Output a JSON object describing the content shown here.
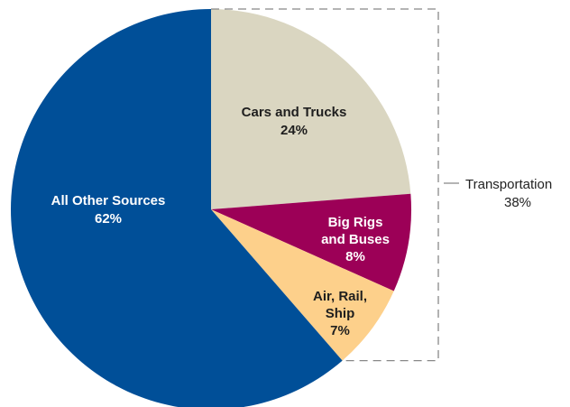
{
  "chart_data": {
    "type": "pie",
    "slices": [
      {
        "name": "Cars and Trucks",
        "label_lines": [
          "Cars and Trucks",
          "24%"
        ],
        "value": 24,
        "color": "#dad6c1",
        "text_color": "#1e1e1e"
      },
      {
        "name": "Big Rigs and Buses",
        "label_lines": [
          "Big Rigs",
          "and Buses",
          "8%"
        ],
        "value": 8,
        "color": "#9c0057",
        "text_color": "#ffffff"
      },
      {
        "name": "Air, Rail, Ship",
        "label_lines": [
          "Air, Rail,",
          "Ship",
          "7%"
        ],
        "value": 7,
        "color": "#fdd08b",
        "text_color": "#1e1e1e"
      },
      {
        "name": "All Other Sources",
        "label_lines": [
          "All Other Sources",
          "62%"
        ],
        "value": 62,
        "color": "#004f98",
        "text_color": "#ffffff"
      }
    ],
    "group_annotation": {
      "label": "Transportation",
      "value_label": "38%",
      "line_color": "#888888"
    }
  }
}
